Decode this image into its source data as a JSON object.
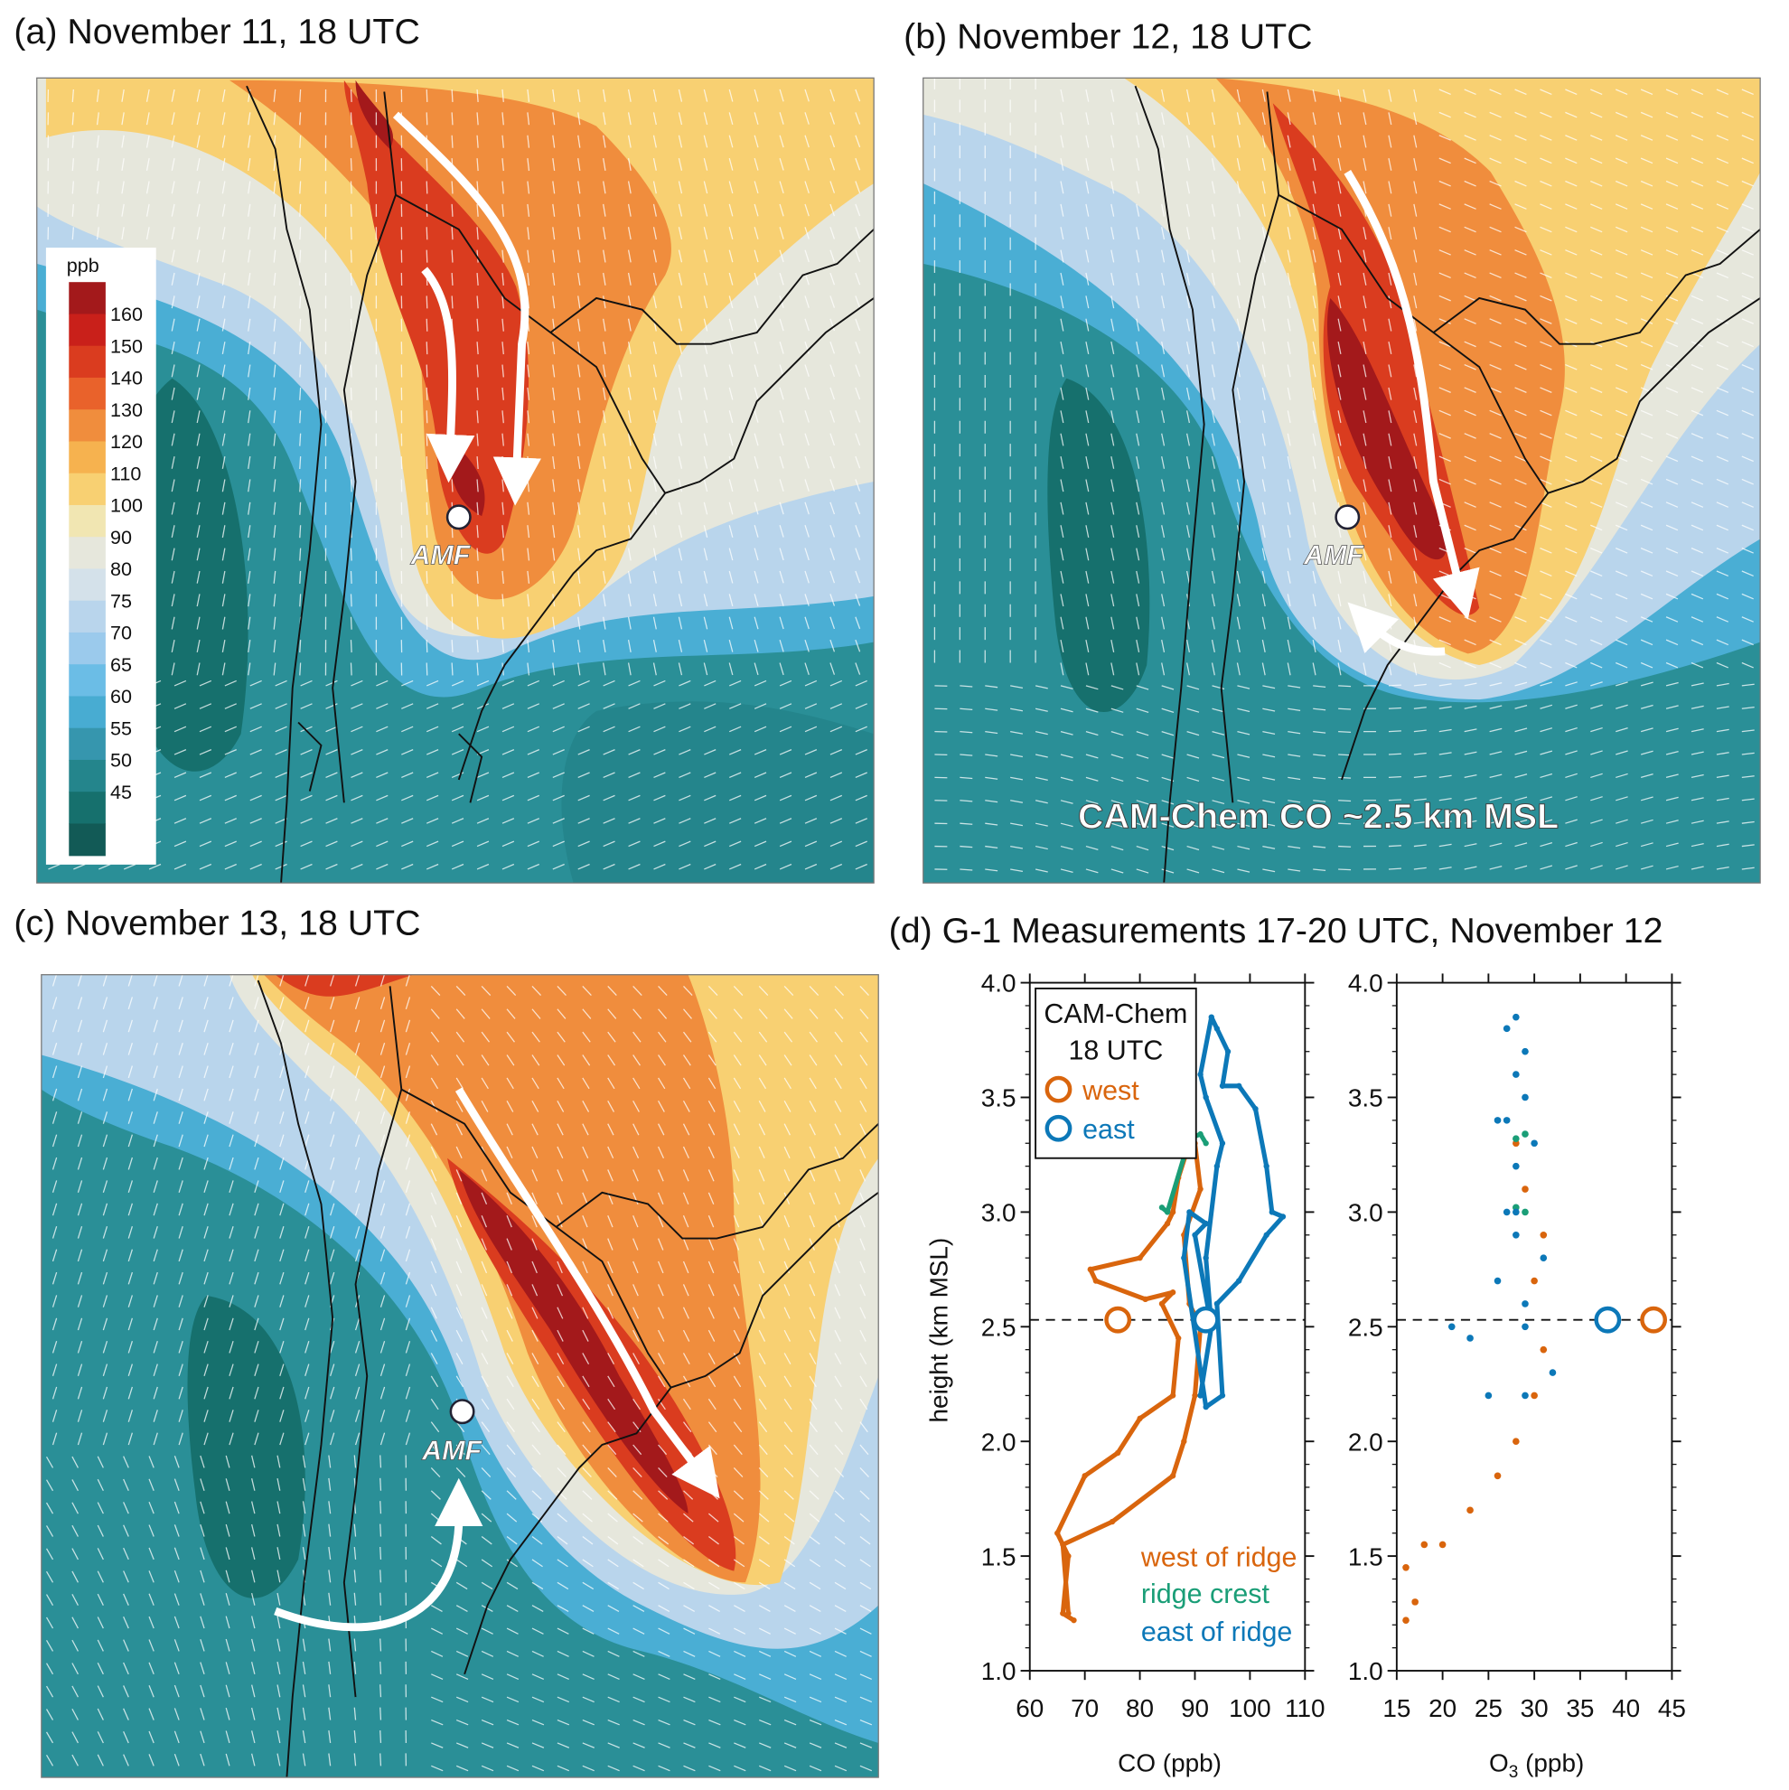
{
  "panels": {
    "a": {
      "title": "(a) November 11, 18 UTC",
      "site_label": "AMF"
    },
    "b": {
      "title": "(b) November 12, 18 UTC",
      "site_label": "AMF",
      "annotation": "CAM-Chem CO ~2.5 km MSL"
    },
    "c": {
      "title": "(c) November 13, 18 UTC",
      "site_label": "AMF"
    },
    "d": {
      "title": "(d) G-1  Measurements 17-20 UTC, November 12"
    }
  },
  "colorbar": {
    "unit": "ppb",
    "levels": [
      "160",
      "150",
      "140",
      "130",
      "120",
      "110",
      "100",
      "90",
      "80",
      "75",
      "70",
      "65",
      "60",
      "55",
      "50",
      "45"
    ],
    "colors": [
      "#a3191b",
      "#c9201a",
      "#da3c1f",
      "#e9622b",
      "#f08d3d",
      "#f6b24f",
      "#f8d072",
      "#f1e6b2",
      "#e6e7dc",
      "#d4e1ea",
      "#b9d5ec",
      "#9bcaec",
      "#6bbde6",
      "#48acd2",
      "#3696ae",
      "#24858c",
      "#16706d",
      "#125a56"
    ]
  },
  "chart_data": {
    "type": "scatter",
    "title": "(d) G-1  Measurements 17-20 UTC, November 12",
    "ylabel": "height (km MSL)",
    "ylim": [
      1.0,
      4.0
    ],
    "yticks": [
      "1.0",
      "1.5",
      "2.0",
      "2.5",
      "3.0",
      "3.5",
      "4.0"
    ],
    "reference_height_km": 2.53,
    "subplots": [
      {
        "xlabel": "CO (ppb)",
        "xlim": [
          60,
          110
        ],
        "xticks": [
          "60",
          "70",
          "80",
          "90",
          "100",
          "110"
        ],
        "series": [
          {
            "name": "west of ridge",
            "color": "#d9650d",
            "points": [
              [
                68,
                1.22
              ],
              [
                66,
                1.25
              ],
              [
                67,
                1.5
              ],
              [
                65,
                1.6
              ],
              [
                70,
                1.85
              ],
              [
                76,
                1.95
              ],
              [
                80,
                2.1
              ],
              [
                86,
                2.2
              ],
              [
                87,
                2.45
              ],
              [
                84,
                2.6
              ],
              [
                86,
                2.65
              ],
              [
                81,
                2.62
              ],
              [
                72,
                2.7
              ],
              [
                71,
                2.75
              ],
              [
                80,
                2.8
              ],
              [
                85,
                2.95
              ],
              [
                86,
                3.0
              ],
              [
                87,
                3.15
              ],
              [
                89,
                3.3
              ],
              [
                90,
                3.3
              ],
              [
                91,
                3.1
              ],
              [
                88,
                2.9
              ],
              [
                89,
                2.6
              ],
              [
                91,
                2.5
              ],
              [
                90,
                2.2
              ],
              [
                88,
                2.0
              ],
              [
                86,
                1.85
              ],
              [
                75,
                1.65
              ],
              [
                66,
                1.55
              ],
              [
                67,
                1.25
              ]
            ]
          },
          {
            "name": "ridge crest",
            "color": "#1a9e77",
            "points": [
              [
                84,
                3.02
              ],
              [
                85,
                3.0
              ],
              [
                89,
                3.32
              ],
              [
                91,
                3.34
              ],
              [
                92,
                3.3
              ]
            ]
          },
          {
            "name": "east of ridge",
            "color": "#0c78b8",
            "points": [
              [
                91,
                2.2
              ],
              [
                93,
                2.5
              ],
              [
                92,
                2.8
              ],
              [
                94,
                3.2
              ],
              [
                95,
                3.3
              ],
              [
                92,
                3.5
              ],
              [
                91,
                3.6
              ],
              [
                93,
                3.85
              ],
              [
                94,
                3.8
              ],
              [
                96,
                3.7
              ],
              [
                95,
                3.55
              ],
              [
                98,
                3.55
              ],
              [
                101,
                3.45
              ],
              [
                103,
                3.2
              ],
              [
                104,
                3.0
              ],
              [
                106,
                2.98
              ],
              [
                103,
                2.9
              ],
              [
                98,
                2.7
              ],
              [
                94,
                2.6
              ],
              [
                95,
                2.2
              ],
              [
                92,
                2.15
              ],
              [
                88,
                2.8
              ],
              [
                89,
                3.0
              ],
              [
                92,
                2.95
              ],
              [
                90,
                2.9
              ],
              [
                93,
                2.5
              ],
              [
                91,
                2.2
              ]
            ]
          }
        ],
        "model": [
          {
            "name": "west",
            "x": 76,
            "y": 2.53,
            "color": "#d9650d"
          },
          {
            "name": "east",
            "x": 92,
            "y": 2.53,
            "color": "#0c78b8"
          }
        ]
      },
      {
        "xlabel": "O3 (ppb)",
        "xlabel_main": "O",
        "xlabel_sub": "3",
        "xlabel_tail": " (ppb)",
        "xlim": [
          15,
          45
        ],
        "xticks": [
          "15",
          "20",
          "25",
          "30",
          "35",
          "40",
          "45"
        ],
        "series": [
          {
            "name": "west of ridge",
            "color": "#d9650d",
            "points": [
              [
                16,
                1.22
              ],
              [
                17,
                1.3
              ],
              [
                16,
                1.45
              ],
              [
                18,
                1.55
              ],
              [
                20,
                1.55
              ],
              [
                23,
                1.7
              ],
              [
                26,
                1.85
              ],
              [
                28,
                2.0
              ],
              [
                30,
                2.2
              ],
              [
                31,
                2.4
              ],
              [
                30,
                2.7
              ],
              [
                31,
                2.9
              ],
              [
                29,
                3.1
              ],
              [
                28,
                3.3
              ]
            ]
          },
          {
            "name": "ridge crest",
            "color": "#1a9e77",
            "points": [
              [
                28,
                3.02
              ],
              [
                29,
                3.0
              ],
              [
                28,
                3.32
              ],
              [
                29,
                3.34
              ]
            ]
          },
          {
            "name": "east of ridge",
            "color": "#0c78b8",
            "points": [
              [
                25,
                2.2
              ],
              [
                29,
                2.2
              ],
              [
                32,
                2.3
              ],
              [
                29,
                2.5
              ],
              [
                23,
                2.45
              ],
              [
                21,
                2.5
              ],
              [
                26,
                2.7
              ],
              [
                28,
                2.9
              ],
              [
                27,
                3.0
              ],
              [
                28,
                3.2
              ],
              [
                27,
                3.4
              ],
              [
                28,
                3.6
              ],
              [
                27,
                3.8
              ],
              [
                28,
                3.85
              ],
              [
                29,
                3.7
              ],
              [
                29,
                3.5
              ],
              [
                30,
                3.3
              ],
              [
                26,
                3.4
              ],
              [
                28,
                3.0
              ],
              [
                31,
                2.8
              ],
              [
                29,
                2.6
              ]
            ]
          }
        ],
        "model": [
          {
            "name": "west",
            "x": 43,
            "y": 2.53,
            "color": "#d9650d"
          },
          {
            "name": "east",
            "x": 38,
            "y": 2.53,
            "color": "#0c78b8"
          }
        ]
      }
    ],
    "legend_series": [
      "west of ridge",
      "ridge crest",
      "east of ridge"
    ],
    "model_legend": {
      "title_line1": "CAM-Chem",
      "title_line2": "18 UTC",
      "west": "west",
      "east": "east"
    }
  }
}
